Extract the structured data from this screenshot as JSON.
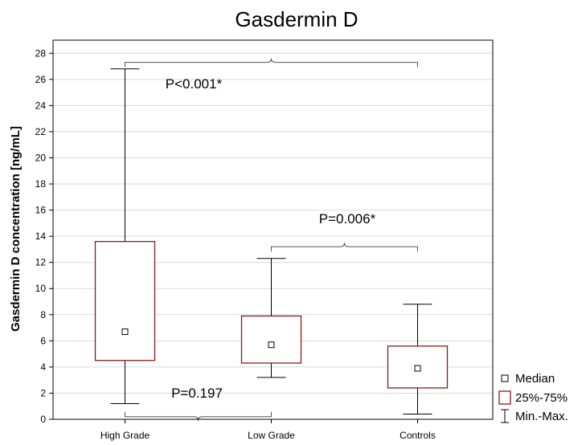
{
  "chart_data": {
    "type": "boxplot",
    "title": "Gasdermin D",
    "ylabel": "Gasdermin D concentration [ng/mL]",
    "ylim": [
      0,
      29
    ],
    "yticks": [
      0,
      2,
      4,
      6,
      8,
      10,
      12,
      14,
      16,
      18,
      20,
      22,
      24,
      26,
      28
    ],
    "grid": "horizontal",
    "categories": [
      "High Grade",
      "Low Grade",
      "Controls"
    ],
    "groups": [
      {
        "name": "High Grade",
        "min": 1.2,
        "q1": 4.5,
        "median": 6.7,
        "q3": 13.6,
        "max": 26.8
      },
      {
        "name": "Low Grade",
        "min": 3.2,
        "q1": 4.3,
        "median": 5.7,
        "q3": 7.9,
        "max": 12.3
      },
      {
        "name": "Controls",
        "min": 0.4,
        "q1": 2.4,
        "median": 3.9,
        "q3": 5.6,
        "max": 8.8
      }
    ],
    "annotations": [
      {
        "text": "P<0.001*",
        "from": "High Grade",
        "to": "Controls",
        "y": 27.3
      },
      {
        "text": "P=0.006*",
        "from": "Low Grade",
        "to": "Controls",
        "y": 13.2
      },
      {
        "text": "P=0.197",
        "from": "High Grade",
        "to": "Low Grade",
        "y": 0.2
      }
    ],
    "legend": {
      "position": "bottom-right",
      "items": [
        {
          "symbol": "square",
          "label": "Median"
        },
        {
          "symbol": "box",
          "label": "25%-75%"
        },
        {
          "symbol": "whisker",
          "label": "Min.-Max."
        }
      ]
    },
    "colors": {
      "box": "#8b1a1a",
      "whisker": "#000000",
      "grid": "#d9d9d9",
      "bracket": "#555555"
    }
  }
}
